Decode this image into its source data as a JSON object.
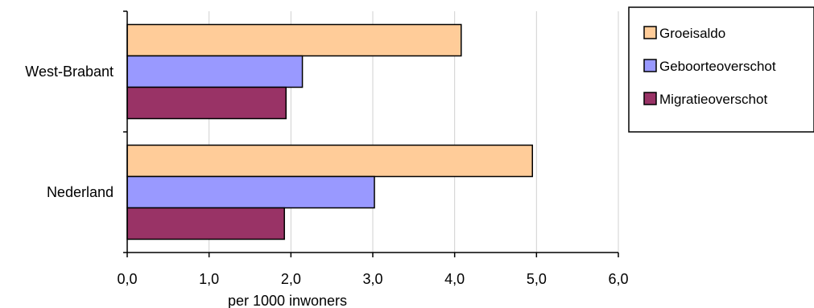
{
  "chart_data": {
    "type": "bar",
    "orientation": "horizontal",
    "title": "",
    "xlabel": "per 1000 inwoners",
    "ylabel": "",
    "xlim": [
      0,
      6
    ],
    "xticks": [
      "0,0",
      "1,0",
      "2,0",
      "3,0",
      "4,0",
      "5,0",
      "6,0"
    ],
    "grid": true,
    "legend_position": "right",
    "categories": [
      "West-Brabant",
      "Nederland"
    ],
    "series": [
      {
        "name": "Groeisaldo",
        "color": "#FFCC99",
        "values": [
          4.08,
          4.95
        ]
      },
      {
        "name": "Geboorteoverschot",
        "color": "#9999FF",
        "values": [
          2.14,
          3.02
        ]
      },
      {
        "name": "Migratieoverschot",
        "color": "#993366",
        "values": [
          1.94,
          1.92
        ]
      }
    ]
  }
}
